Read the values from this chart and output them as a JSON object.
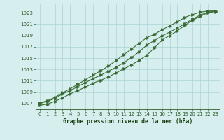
{
  "title": "Graphe pression niveau de la mer (hPa)",
  "x_hours": [
    0,
    1,
    2,
    3,
    4,
    5,
    6,
    7,
    8,
    9,
    10,
    11,
    12,
    13,
    14,
    15,
    16,
    17,
    18,
    19,
    20,
    21,
    22,
    23
  ],
  "line_main": [
    1007.0,
    1007.4,
    1007.9,
    1008.7,
    1009.3,
    1010.0,
    1010.7,
    1011.4,
    1012.0,
    1012.7,
    1013.4,
    1014.2,
    1015.1,
    1016.1,
    1017.3,
    1018.1,
    1018.9,
    1019.6,
    1020.3,
    1021.1,
    1021.9,
    1022.6,
    1023.1,
    1023.3
  ],
  "line_upper": [
    1007.1,
    1007.5,
    1008.1,
    1008.9,
    1009.6,
    1010.4,
    1011.2,
    1012.0,
    1012.8,
    1013.6,
    1014.6,
    1015.6,
    1016.6,
    1017.6,
    1018.6,
    1019.2,
    1020.0,
    1020.7,
    1021.4,
    1022.2,
    1022.7,
    1023.1,
    1023.3,
    1023.3
  ],
  "line_lower": [
    1006.7,
    1006.9,
    1007.4,
    1008.0,
    1008.7,
    1009.3,
    1009.9,
    1010.6,
    1011.1,
    1011.7,
    1012.4,
    1013.1,
    1013.8,
    1014.6,
    1015.5,
    1016.8,
    1018.2,
    1019.0,
    1019.8,
    1020.8,
    1021.7,
    1022.4,
    1023.0,
    1023.2
  ],
  "line_color": "#3a6b35",
  "bg_color": "#d6eeee",
  "grid_color": "#aad4d4",
  "tick_color": "#2d5a28",
  "label_color": "#1a4010",
  "ylim": [
    1006.0,
    1024.5
  ],
  "yticks": [
    1007,
    1009,
    1011,
    1013,
    1015,
    1017,
    1019,
    1021,
    1023
  ],
  "xlim": [
    -0.5,
    23.5
  ],
  "xticks": [
    0,
    1,
    2,
    3,
    4,
    5,
    6,
    7,
    8,
    9,
    10,
    11,
    12,
    13,
    14,
    15,
    16,
    17,
    18,
    19,
    20,
    21,
    22,
    23
  ],
  "markersize": 2.5,
  "linewidth": 0.8
}
